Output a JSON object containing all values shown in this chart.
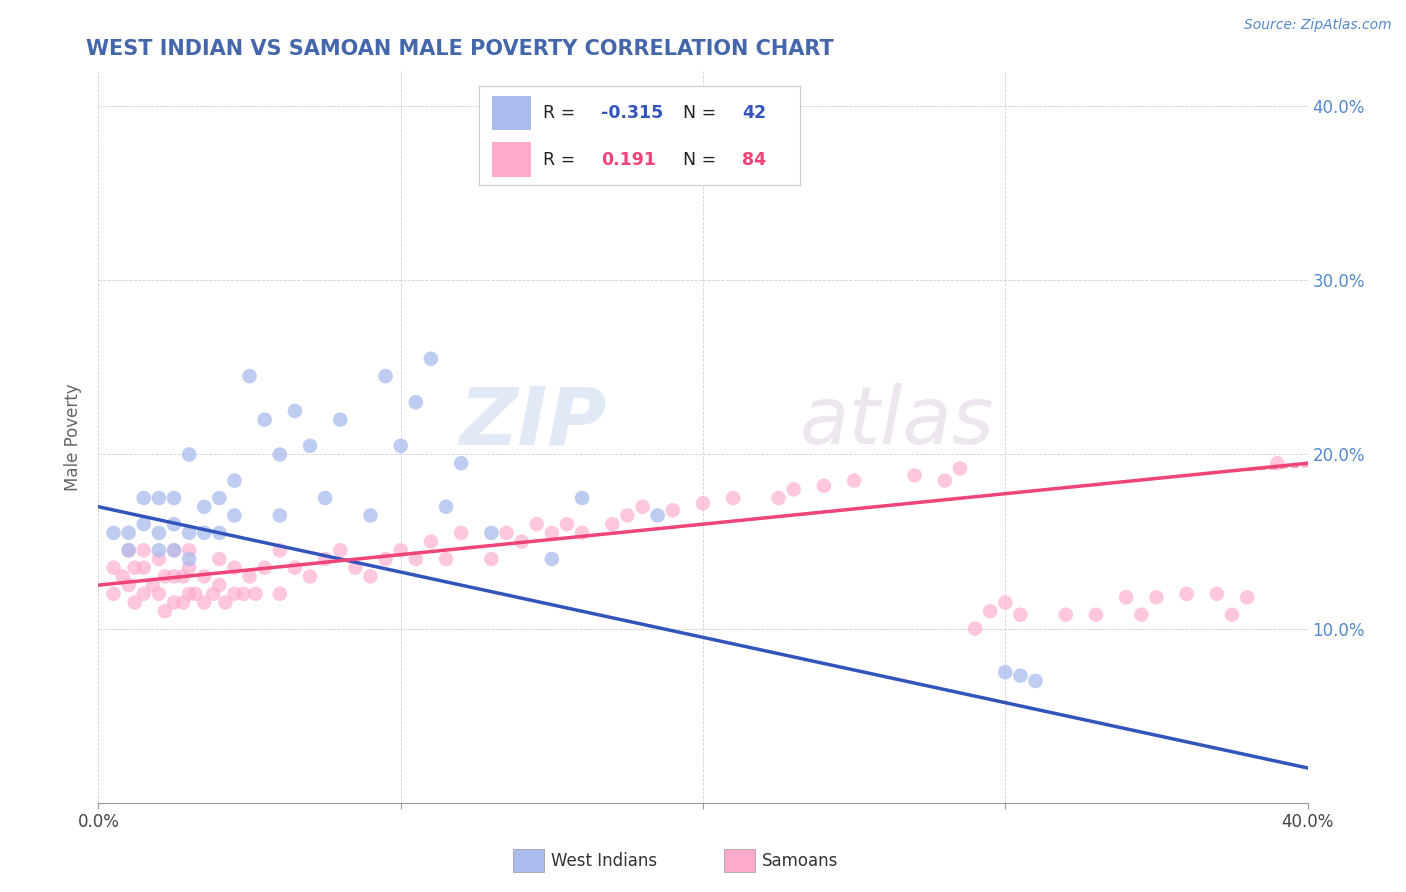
{
  "title": "WEST INDIAN VS SAMOAN MALE POVERTY CORRELATION CHART",
  "source": "Source: ZipAtlas.com",
  "ylabel": "Male Poverty",
  "title_color": "#4466aa",
  "source_color": "#5588cc",
  "xlim": [
    0.0,
    0.4
  ],
  "ylim": [
    0.0,
    0.42
  ],
  "xticks": [
    0.0,
    0.1,
    0.2,
    0.3,
    0.4
  ],
  "yticks": [
    0.1,
    0.2,
    0.3,
    0.4
  ],
  "xticklabels": [
    "0.0%",
    "",
    "",
    "",
    "40.0%"
  ],
  "yticklabels": [
    "10.0%",
    "20.0%",
    "30.0%",
    "40.0%"
  ],
  "right_yticklabels": [
    "10.0%",
    "20.0%",
    "30.0%",
    "40.0%"
  ],
  "right_yticks": [
    0.1,
    0.2,
    0.3,
    0.4
  ],
  "legend_R1": "-0.315",
  "legend_N1": "42",
  "legend_R2": "0.191",
  "legend_N2": "84",
  "legend_label1": "West Indians",
  "legend_label2": "Samoans",
  "blue_color": "#aabbee",
  "pink_color": "#ffaacc",
  "blue_line_color": "#3355bb",
  "pink_line_color": "#ee4477",
  "watermark_zip": "ZIP",
  "watermark_atlas": "atlas",
  "blue_x": [
    0.005,
    0.01,
    0.01,
    0.015,
    0.015,
    0.02,
    0.02,
    0.02,
    0.025,
    0.025,
    0.025,
    0.03,
    0.03,
    0.03,
    0.035,
    0.035,
    0.04,
    0.04,
    0.045,
    0.045,
    0.05,
    0.055,
    0.06,
    0.06,
    0.065,
    0.07,
    0.075,
    0.08,
    0.09,
    0.095,
    0.1,
    0.105,
    0.11,
    0.115,
    0.12,
    0.13,
    0.15,
    0.16,
    0.185,
    0.3,
    0.305,
    0.31
  ],
  "blue_y": [
    0.155,
    0.145,
    0.155,
    0.16,
    0.175,
    0.145,
    0.155,
    0.175,
    0.145,
    0.16,
    0.175,
    0.14,
    0.155,
    0.2,
    0.155,
    0.17,
    0.155,
    0.175,
    0.165,
    0.185,
    0.245,
    0.22,
    0.165,
    0.2,
    0.225,
    0.205,
    0.175,
    0.22,
    0.165,
    0.245,
    0.205,
    0.23,
    0.255,
    0.17,
    0.195,
    0.155,
    0.14,
    0.175,
    0.165,
    0.075,
    0.073,
    0.07
  ],
  "pink_x": [
    0.005,
    0.005,
    0.008,
    0.01,
    0.01,
    0.012,
    0.012,
    0.015,
    0.015,
    0.015,
    0.018,
    0.02,
    0.02,
    0.022,
    0.022,
    0.025,
    0.025,
    0.025,
    0.028,
    0.028,
    0.03,
    0.03,
    0.03,
    0.032,
    0.035,
    0.035,
    0.038,
    0.04,
    0.04,
    0.042,
    0.045,
    0.045,
    0.048,
    0.05,
    0.052,
    0.055,
    0.06,
    0.06,
    0.065,
    0.07,
    0.075,
    0.08,
    0.085,
    0.09,
    0.095,
    0.1,
    0.105,
    0.11,
    0.115,
    0.12,
    0.13,
    0.135,
    0.14,
    0.145,
    0.15,
    0.155,
    0.16,
    0.17,
    0.175,
    0.18,
    0.19,
    0.2,
    0.21,
    0.225,
    0.23,
    0.24,
    0.25,
    0.27,
    0.28,
    0.285,
    0.29,
    0.295,
    0.3,
    0.305,
    0.32,
    0.33,
    0.34,
    0.345,
    0.35,
    0.36,
    0.37,
    0.375,
    0.38,
    0.39
  ],
  "pink_y": [
    0.12,
    0.135,
    0.13,
    0.125,
    0.145,
    0.115,
    0.135,
    0.12,
    0.135,
    0.145,
    0.125,
    0.12,
    0.14,
    0.11,
    0.13,
    0.115,
    0.13,
    0.145,
    0.115,
    0.13,
    0.12,
    0.135,
    0.145,
    0.12,
    0.115,
    0.13,
    0.12,
    0.125,
    0.14,
    0.115,
    0.12,
    0.135,
    0.12,
    0.13,
    0.12,
    0.135,
    0.12,
    0.145,
    0.135,
    0.13,
    0.14,
    0.145,
    0.135,
    0.13,
    0.14,
    0.145,
    0.14,
    0.15,
    0.14,
    0.155,
    0.14,
    0.155,
    0.15,
    0.16,
    0.155,
    0.16,
    0.155,
    0.16,
    0.165,
    0.17,
    0.168,
    0.172,
    0.175,
    0.175,
    0.18,
    0.182,
    0.185,
    0.188,
    0.185,
    0.192,
    0.1,
    0.11,
    0.115,
    0.108,
    0.108,
    0.108,
    0.118,
    0.108,
    0.118,
    0.12,
    0.12,
    0.108,
    0.118,
    0.195
  ]
}
